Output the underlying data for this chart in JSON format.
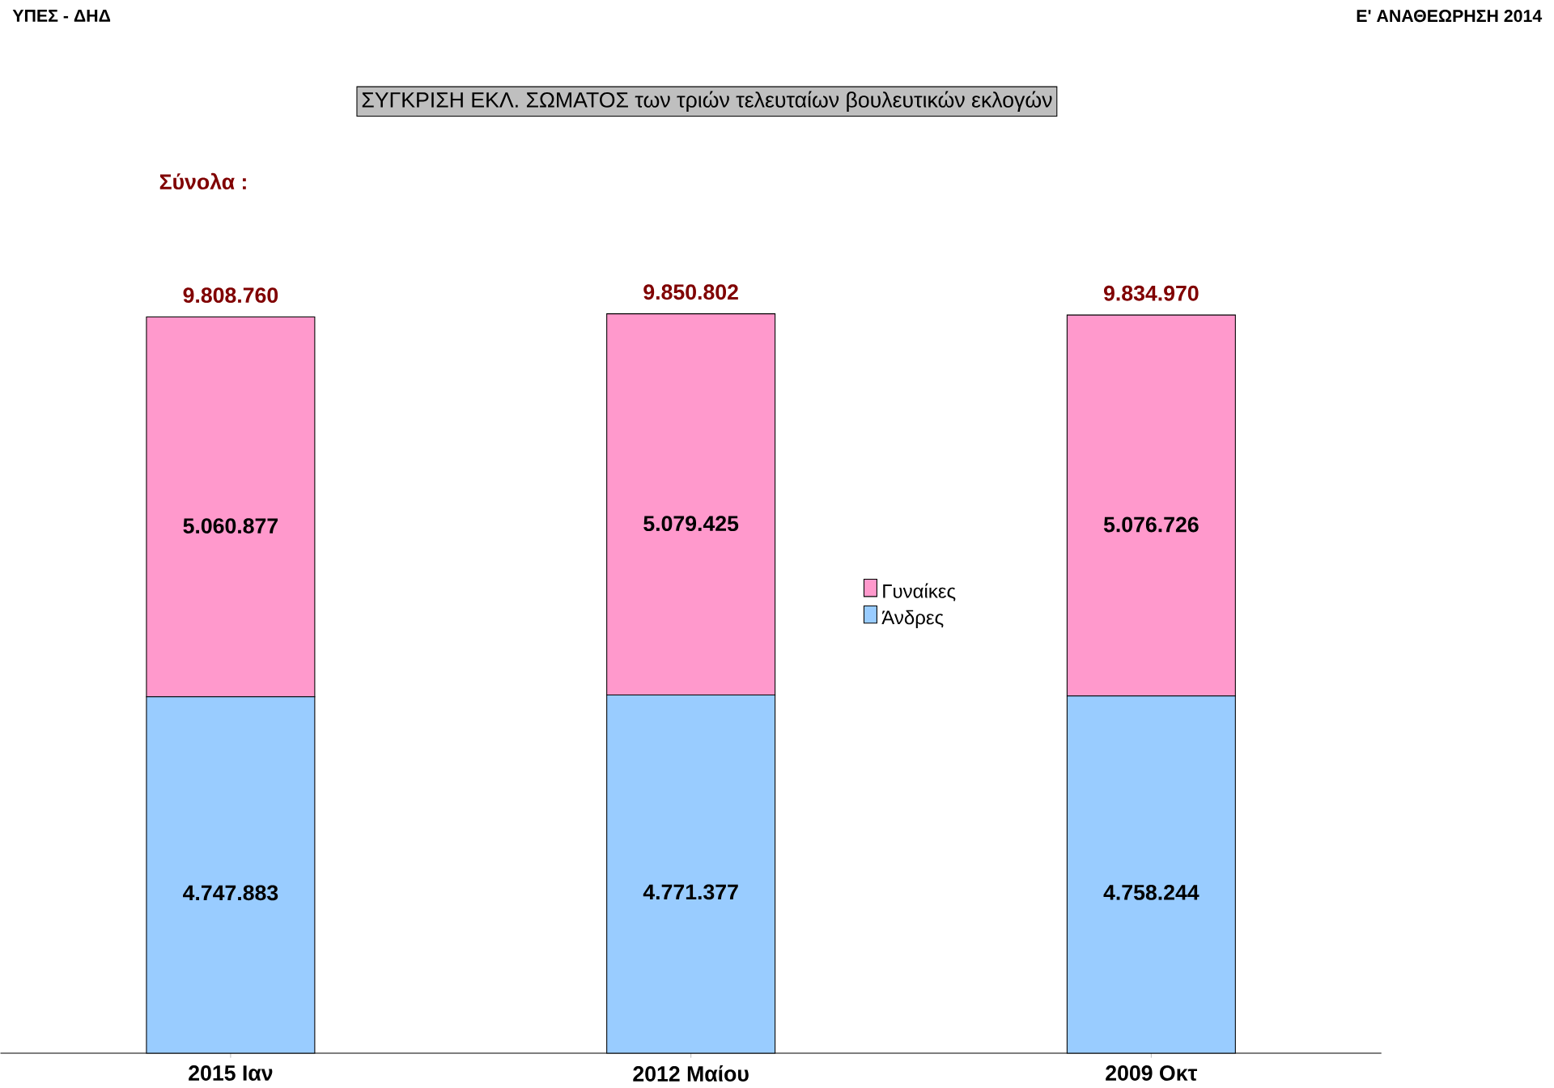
{
  "chart_data": {
    "type": "bar",
    "stacked": true,
    "title": "ΣΥΓΚΡΙΣΗ ΕΚΛ. ΣΩΜΑΤΟΣ των τριών τελευταίων βουλευτικών εκλογών",
    "annotations": [
      "ΥΠΕΣ - ΔΗΔ",
      "Ε' ΑΝΑΘΕΩΡΗΣΗ 2014",
      "Σύνολα :"
    ],
    "categories": [
      "2015 Ιαν",
      "2012 Μαίου",
      "2009 Οκτ"
    ],
    "series": [
      {
        "name": "Άνδρες",
        "color": "#99ccff",
        "values": [
          4747883,
          4771377,
          4758244
        ],
        "value_labels": [
          "4.747.883",
          "4.771.377",
          "4.758.244"
        ]
      },
      {
        "name": "Γυναίκες",
        "color": "#ff99cc",
        "values": [
          5060877,
          5079425,
          5076726
        ],
        "value_labels": [
          "5.060.877",
          "5.079.425",
          "5.076.726"
        ]
      }
    ],
    "totals": [
      "9.808.760",
      "9.850.802",
      "9.834.970"
    ],
    "legend": "right"
  }
}
